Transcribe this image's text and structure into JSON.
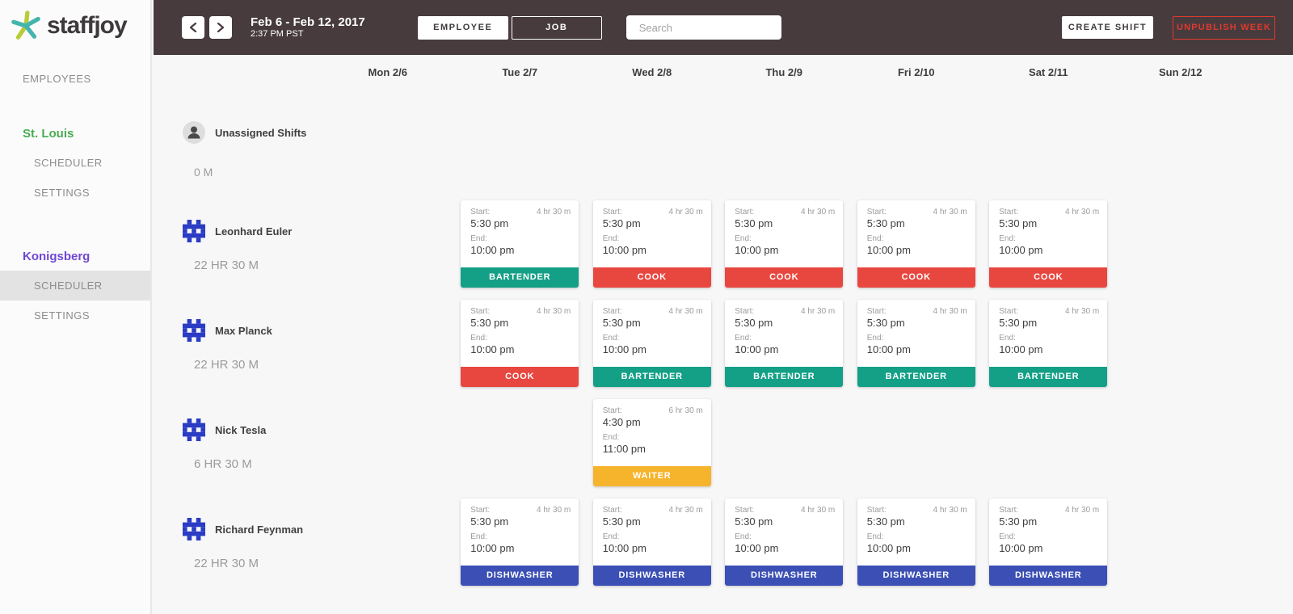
{
  "brand": {
    "name": "staffjoy"
  },
  "sidebar": {
    "employees_label": "EMPLOYEES",
    "teams": [
      {
        "name": "St. Louis",
        "color": "#47ad50",
        "items": [
          {
            "label": "SCHEDULER",
            "active": false
          },
          {
            "label": "SETTINGS",
            "active": false
          }
        ]
      },
      {
        "name": "Konigsberg",
        "color": "#6f48d5",
        "items": [
          {
            "label": "SCHEDULER",
            "active": true
          },
          {
            "label": "SETTINGS",
            "active": false
          }
        ]
      }
    ]
  },
  "topbar": {
    "date_range": "Feb 6 - Feb 12, 2017",
    "current_time": "2:37 PM PST",
    "view_toggle": [
      {
        "label": "EMPLOYEE",
        "selected": true
      },
      {
        "label": "JOB",
        "selected": false
      }
    ],
    "search_placeholder": "Search",
    "create_shift_label": "CREATE SHIFT",
    "unpublish_label": "UNPUBLISH WEEK"
  },
  "calendar": {
    "days": [
      "Mon 2/6",
      "Tue 2/7",
      "Wed 2/8",
      "Thu 2/9",
      "Fri 2/10",
      "Sat 2/11",
      "Sun 2/12"
    ],
    "start_label": "Start:",
    "end_label": "End:",
    "role_colors": {
      "BARTENDER": "#149f87",
      "COOK": "#e8473f",
      "WAITER": "#f6b42c",
      "DISHWASHER": "#3b4fb4"
    },
    "rows": [
      {
        "name": "Unassigned Shifts",
        "hours": "0 M",
        "avatar": "person",
        "shifts": [
          null,
          null,
          null,
          null,
          null,
          null,
          null
        ]
      },
      {
        "name": "Leonhard Euler",
        "hours": "22 HR 30 M",
        "avatar": "identicon",
        "shifts": [
          null,
          {
            "start": "5:30 pm",
            "end": "10:00 pm",
            "duration": "4 hr 30 m",
            "role": "BARTENDER"
          },
          {
            "start": "5:30 pm",
            "end": "10:00 pm",
            "duration": "4 hr 30 m",
            "role": "COOK"
          },
          {
            "start": "5:30 pm",
            "end": "10:00 pm",
            "duration": "4 hr 30 m",
            "role": "COOK"
          },
          {
            "start": "5:30 pm",
            "end": "10:00 pm",
            "duration": "4 hr 30 m",
            "role": "COOK"
          },
          {
            "start": "5:30 pm",
            "end": "10:00 pm",
            "duration": "4 hr 30 m",
            "role": "COOK"
          },
          null
        ]
      },
      {
        "name": "Max Planck",
        "hours": "22 HR 30 M",
        "avatar": "identicon",
        "shifts": [
          null,
          {
            "start": "5:30 pm",
            "end": "10:00 pm",
            "duration": "4 hr 30 m",
            "role": "COOK"
          },
          {
            "start": "5:30 pm",
            "end": "10:00 pm",
            "duration": "4 hr 30 m",
            "role": "BARTENDER"
          },
          {
            "start": "5:30 pm",
            "end": "10:00 pm",
            "duration": "4 hr 30 m",
            "role": "BARTENDER"
          },
          {
            "start": "5:30 pm",
            "end": "10:00 pm",
            "duration": "4 hr 30 m",
            "role": "BARTENDER"
          },
          {
            "start": "5:30 pm",
            "end": "10:00 pm",
            "duration": "4 hr 30 m",
            "role": "BARTENDER"
          },
          null
        ]
      },
      {
        "name": "Nick Tesla",
        "hours": "6 HR 30 M",
        "avatar": "identicon",
        "shifts": [
          null,
          null,
          {
            "start": "4:30 pm",
            "end": "11:00 pm",
            "duration": "6 hr 30 m",
            "role": "WAITER"
          },
          null,
          null,
          null,
          null
        ]
      },
      {
        "name": "Richard Feynman",
        "hours": "22 HR 30 M",
        "avatar": "identicon",
        "shifts": [
          null,
          {
            "start": "5:30 pm",
            "end": "10:00 pm",
            "duration": "4 hr 30 m",
            "role": "DISHWASHER"
          },
          {
            "start": "5:30 pm",
            "end": "10:00 pm",
            "duration": "4 hr 30 m",
            "role": "DISHWASHER"
          },
          {
            "start": "5:30 pm",
            "end": "10:00 pm",
            "duration": "4 hr 30 m",
            "role": "DISHWASHER"
          },
          {
            "start": "5:30 pm",
            "end": "10:00 pm",
            "duration": "4 hr 30 m",
            "role": "DISHWASHER"
          },
          {
            "start": "5:30 pm",
            "end": "10:00 pm",
            "duration": "4 hr 30 m",
            "role": "DISHWASHER"
          },
          null
        ]
      }
    ]
  }
}
